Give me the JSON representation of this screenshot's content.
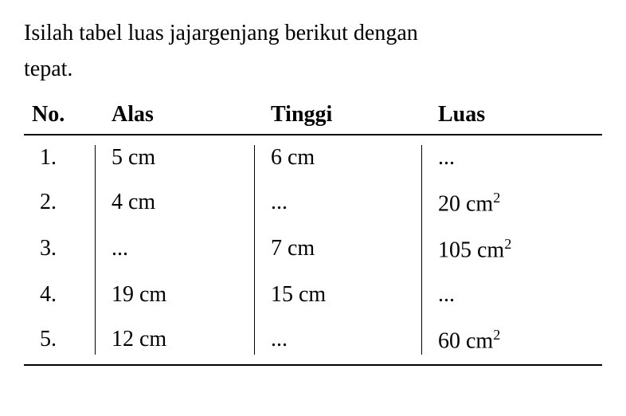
{
  "instruction": {
    "line1": "Isilah tabel luas jajargenjang berikut dengan",
    "line2": "tepat."
  },
  "headers": {
    "no": "No.",
    "alas": "Alas",
    "tinggi": "Tinggi",
    "luas": "Luas"
  },
  "rows": [
    {
      "no": "1.",
      "alas": "5 cm",
      "tinggi": "6 cm",
      "luas": "...",
      "luas_has_sup": false
    },
    {
      "no": "2.",
      "alas": "4 cm",
      "tinggi": "...",
      "luas": "20 cm",
      "luas_has_sup": true
    },
    {
      "no": "3.",
      "alas": "...",
      "tinggi": "7 cm",
      "luas": "105 cm",
      "luas_has_sup": true
    },
    {
      "no": "4.",
      "alas": "19 cm",
      "tinggi": "15 cm",
      "luas": "...",
      "luas_has_sup": false
    },
    {
      "no": "5.",
      "alas": "12 cm",
      "tinggi": "...",
      "luas": "60 cm",
      "luas_has_sup": true
    }
  ],
  "styling": {
    "font_family": "Georgia, Times New Roman, serif",
    "font_size_instruction": 28,
    "font_size_header": 28,
    "font_size_data": 28,
    "text_color": "#000000",
    "background_color": "#ffffff",
    "border_color": "#000000",
    "border_width": 2,
    "divider_width": 1,
    "col_widths": {
      "no": 110,
      "alas": 200,
      "tinggi": 210,
      "luas": 200
    },
    "row_padding": 12
  }
}
